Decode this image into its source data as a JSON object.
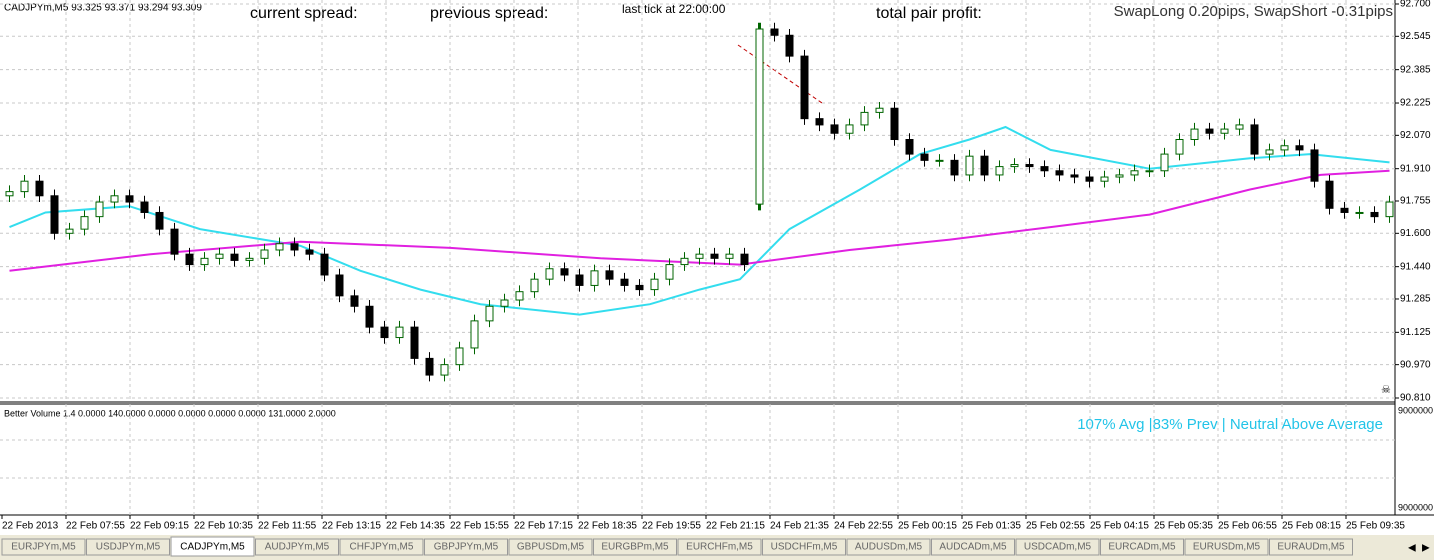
{
  "header": {
    "symbol": "CADJPYm,M5  93.325 93.371 93.294 93.309",
    "current_spread": "current spread:",
    "previous_spread": "previous spread:",
    "last_tick": "last tick at 22:00:00",
    "total_profit": "total pair profit:",
    "swap": "SwapLong 0.20pips, SwapShort -0.31pips"
  },
  "chart_data": {
    "type": "candlestick",
    "up_color": "#006400",
    "down_color": "#000000",
    "grid": true,
    "ylim": [
      90.81,
      92.7
    ],
    "yticks": [
      {
        "value": 92.7,
        "label": "92.700"
      },
      92.545,
      92.385,
      92.225,
      {
        "value": 92.07,
        "label": "92.070"
      },
      {
        "value": 91.91,
        "label": "91.910"
      },
      91.755,
      {
        "value": 91.6,
        "label": "91.600"
      },
      {
        "value": 91.44,
        "label": "91.440"
      },
      91.285,
      91.125,
      {
        "value": 90.97,
        "label": "90.970"
      },
      {
        "value": 90.81,
        "label": "90.810"
      }
    ],
    "categories": [
      "22 Feb 2013",
      "22 Feb 07:55",
      "22 Feb 09:15",
      "22 Feb 10:35",
      "22 Feb 11:55",
      "22 Feb 13:15",
      "22 Feb 14:35",
      "22 Feb 15:55",
      "22 Feb 17:15",
      "22 Feb 18:35",
      "22 Feb 19:55",
      "22 Feb 21:15",
      "24 Feb 21:35",
      "24 Feb 22:55",
      "25 Feb 00:15",
      "25 Feb 01:35",
      "25 Feb 02:55",
      "25 Feb 04:15",
      "25 Feb 05:35",
      "25 Feb 06:55",
      "25 Feb 08:15",
      "25 Feb 09:35"
    ],
    "candles": {
      "open": [
        91.78,
        91.8,
        91.85,
        91.78,
        91.6,
        91.62,
        91.68,
        91.75,
        91.78,
        91.75,
        91.7,
        91.62,
        91.5,
        91.45,
        91.48,
        91.5,
        91.47,
        91.48,
        91.52,
        91.55,
        91.52,
        91.5,
        91.4,
        91.3,
        91.25,
        91.15,
        91.1,
        91.15,
        91.0,
        90.92,
        90.97,
        91.05,
        91.18,
        91.25,
        91.28,
        91.32,
        91.38,
        91.43,
        91.4,
        91.35,
        91.42,
        91.38,
        91.35,
        91.33,
        91.38,
        91.45,
        91.48,
        91.5,
        91.48,
        91.5,
        91.74,
        92.58,
        92.55,
        92.45,
        92.15,
        92.12,
        92.08,
        92.12,
        92.18,
        92.2,
        92.05,
        91.98,
        91.95,
        91.95,
        91.88,
        91.97,
        91.88,
        91.92,
        91.93,
        91.92,
        91.9,
        91.88,
        91.87,
        91.85,
        91.87,
        91.88,
        91.9,
        91.9,
        91.98,
        92.05,
        92.1,
        92.08,
        92.1,
        92.12,
        91.98,
        92.0,
        92.02,
        92.0,
        91.85,
        91.72,
        91.7,
        91.7,
        91.68
      ],
      "high": [
        91.83,
        91.88,
        91.88,
        91.81,
        91.65,
        91.71,
        91.78,
        91.81,
        91.81,
        91.78,
        91.73,
        91.65,
        91.53,
        91.51,
        91.53,
        91.53,
        91.51,
        91.55,
        91.58,
        91.58,
        91.55,
        91.53,
        91.43,
        91.33,
        91.28,
        91.18,
        91.18,
        91.18,
        91.03,
        91.0,
        91.08,
        91.21,
        91.28,
        91.31,
        91.35,
        91.41,
        91.46,
        91.46,
        91.43,
        91.45,
        91.45,
        91.41,
        91.38,
        91.41,
        91.48,
        91.51,
        91.53,
        91.53,
        91.53,
        91.53,
        92.61,
        92.61,
        92.58,
        92.48,
        92.18,
        92.15,
        92.15,
        92.21,
        92.23,
        92.23,
        92.08,
        92.01,
        91.98,
        91.98,
        92.0,
        92.0,
        91.95,
        91.96,
        91.96,
        91.95,
        91.93,
        91.91,
        91.9,
        91.9,
        91.91,
        91.93,
        91.93,
        92.01,
        92.08,
        92.13,
        92.13,
        92.13,
        92.15,
        92.15,
        92.03,
        92.05,
        92.05,
        92.03,
        91.88,
        91.75,
        91.73,
        91.73,
        91.78
      ],
      "low": [
        91.75,
        91.77,
        91.75,
        91.57,
        91.57,
        91.59,
        91.65,
        91.72,
        91.72,
        91.67,
        91.59,
        91.47,
        91.42,
        91.42,
        91.45,
        91.44,
        91.44,
        91.45,
        91.49,
        91.49,
        91.47,
        91.37,
        91.27,
        91.22,
        91.12,
        91.07,
        91.07,
        90.97,
        90.89,
        90.89,
        90.94,
        91.02,
        91.15,
        91.22,
        91.25,
        91.29,
        91.35,
        91.37,
        91.32,
        91.32,
        91.35,
        91.32,
        91.3,
        91.3,
        91.35,
        91.42,
        91.45,
        91.45,
        91.45,
        91.42,
        91.71,
        92.52,
        92.42,
        92.12,
        92.09,
        92.05,
        92.05,
        92.09,
        92.15,
        92.02,
        91.95,
        91.92,
        91.92,
        91.85,
        91.85,
        91.85,
        91.85,
        91.89,
        91.89,
        91.87,
        91.85,
        91.84,
        91.82,
        91.82,
        91.84,
        91.85,
        91.87,
        91.87,
        91.95,
        92.02,
        92.05,
        92.05,
        92.07,
        91.95,
        91.95,
        91.97,
        91.97,
        91.82,
        91.69,
        91.67,
        91.67,
        91.65,
        91.65
      ],
      "close": [
        91.8,
        91.85,
        91.78,
        91.6,
        91.62,
        91.68,
        91.75,
        91.78,
        91.75,
        91.7,
        91.62,
        91.5,
        91.45,
        91.48,
        91.5,
        91.47,
        91.48,
        91.52,
        91.55,
        91.52,
        91.5,
        91.4,
        91.3,
        91.25,
        91.15,
        91.1,
        91.15,
        91.0,
        90.92,
        90.97,
        91.05,
        91.18,
        91.25,
        91.28,
        91.32,
        91.38,
        91.43,
        91.4,
        91.35,
        91.42,
        91.38,
        91.35,
        91.33,
        91.38,
        91.45,
        91.48,
        91.5,
        91.48,
        91.5,
        91.45,
        92.58,
        92.55,
        92.45,
        92.15,
        92.12,
        92.08,
        92.12,
        92.18,
        92.2,
        92.05,
        91.98,
        91.95,
        91.95,
        91.88,
        91.97,
        91.88,
        91.92,
        91.93,
        91.92,
        91.9,
        91.88,
        91.87,
        91.85,
        91.87,
        91.88,
        91.9,
        91.9,
        91.98,
        92.05,
        92.1,
        92.08,
        92.1,
        92.12,
        91.98,
        92.0,
        92.02,
        92.0,
        91.85,
        91.72,
        91.7,
        91.7,
        91.68,
        91.75
      ]
    },
    "series": [
      {
        "color": "#33ddee",
        "x": [
          0,
          2.4,
          8,
          12.7,
          19.4,
          23.4,
          27.4,
          31.4,
          38,
          42.7,
          46,
          48.7,
          52,
          56.7,
          60.7,
          64,
          66.4,
          69.4,
          76,
          82.7,
          86.7,
          92
        ],
        "values": [
          91.63,
          91.7,
          91.73,
          91.62,
          91.54,
          91.42,
          91.33,
          91.26,
          91.21,
          91.26,
          91.33,
          91.38,
          91.62,
          91.81,
          91.98,
          92.05,
          92.11,
          92.0,
          91.91,
          91.96,
          91.98,
          91.94
        ]
      },
      {
        "color": "#e020e0",
        "x": [
          0,
          9.4,
          19.4,
          29.4,
          39.4,
          48.7,
          56,
          62.7,
          69.4,
          76,
          82.7,
          87.4,
          92
        ],
        "values": [
          91.42,
          91.5,
          91.56,
          91.53,
          91.48,
          91.45,
          91.52,
          91.57,
          91.63,
          91.69,
          91.81,
          91.88,
          91.9
        ]
      }
    ]
  },
  "indicator": {
    "title": "Better Volume 1.4 0.0000 140.0000 0.0000 0.0000 0.0000 0.0000 131.0000 2.0000",
    "status": "107% Avg |83% Prev | Neutral Above Average",
    "axis_top": "9000000",
    "axis_bottom": "9000000"
  },
  "tabs": {
    "active": 2,
    "items": [
      "EURJPYm,M5",
      "USDJPYm,M5",
      "CADJPYm,M5",
      "AUDJPYm,M5",
      "CHFJPYm,M5",
      "GBPJPYm,M5",
      "GBPUSDm,M5",
      "EURGBPm,M5",
      "EURCHFm,M5",
      "USDCHFm,M5",
      "AUDUSDm,M5",
      "AUDCADm,M5",
      "USDCADm,M5",
      "EURCADm,M5",
      "EURUSDm,M5",
      "EURAUDm,M5"
    ]
  }
}
